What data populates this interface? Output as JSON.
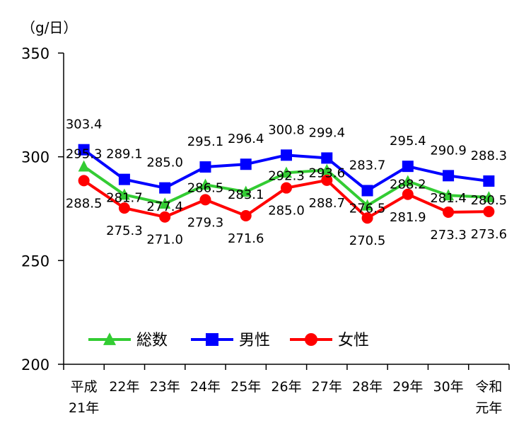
{
  "chart_data": {
    "type": "line",
    "unit_label": "（g/日）",
    "ylim": [
      200,
      350
    ],
    "yticks": [
      200,
      250,
      300,
      350
    ],
    "grid": false,
    "legend_position": "bottom",
    "categories": [
      [
        "平成",
        "21年"
      ],
      [
        "22年"
      ],
      [
        "23年"
      ],
      [
        "24年"
      ],
      [
        "25年"
      ],
      [
        "26年"
      ],
      [
        "27年"
      ],
      [
        "28年"
      ],
      [
        "29年"
      ],
      [
        "30年"
      ],
      [
        "令和",
        "元年"
      ]
    ],
    "series": [
      {
        "name": "総数",
        "color": "#33cc33",
        "marker": "triangle",
        "values": [
          295.3,
          281.7,
          277.4,
          286.5,
          283.1,
          292.3,
          293.6,
          276.5,
          288.2,
          281.4,
          280.5
        ]
      },
      {
        "name": "男性",
        "color": "#0000ff",
        "marker": "square",
        "values": [
          303.4,
          289.1,
          285.0,
          295.1,
          296.4,
          300.8,
          299.4,
          283.7,
          295.4,
          290.9,
          288.3
        ]
      },
      {
        "name": "女性",
        "color": "#ff0000",
        "marker": "circle",
        "values": [
          288.5,
          275.3,
          271.0,
          279.3,
          271.6,
          285.0,
          288.7,
          270.5,
          281.9,
          273.3,
          273.6
        ]
      }
    ]
  }
}
